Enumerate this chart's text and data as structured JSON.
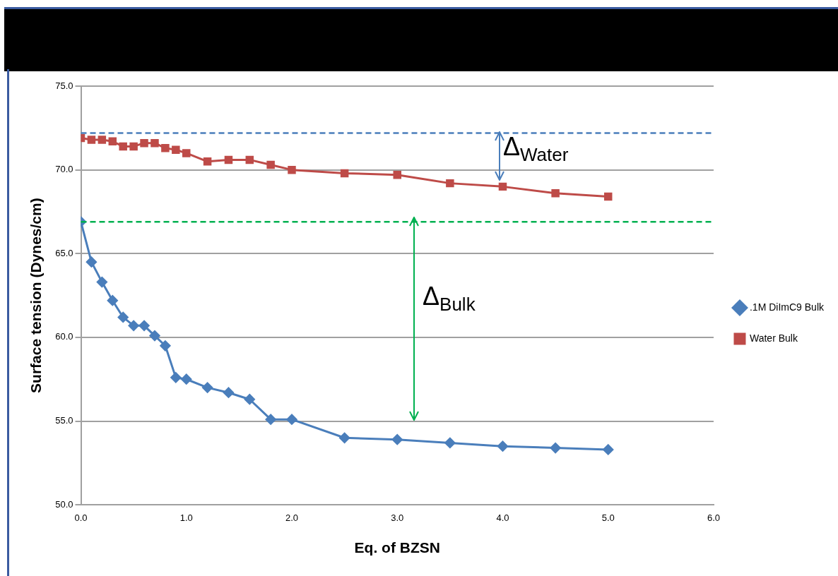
{
  "chart_data": {
    "type": "line",
    "xlabel": "Eq. of BZSN",
    "ylabel": "Surface tension (Dynes/cm)",
    "xlim": [
      0,
      6
    ],
    "xticks": [
      {
        "value": 0,
        "label": "0.0"
      },
      {
        "value": 1,
        "label": "1.0"
      },
      {
        "value": 2,
        "label": "2.0"
      },
      {
        "value": 3,
        "label": "3.0"
      },
      {
        "value": 4,
        "label": "4.0"
      },
      {
        "value": 5,
        "label": "5.0"
      },
      {
        "value": 6,
        "label": "6.0"
      }
    ],
    "ylim": [
      50,
      75
    ],
    "yticks": [
      {
        "value": 50,
        "label": "50.0"
      },
      {
        "value": 55,
        "label": "55.0"
      },
      {
        "value": 60,
        "label": "60.0"
      },
      {
        "value": 65,
        "label": "65.0"
      },
      {
        "value": 70,
        "label": "70.0"
      },
      {
        "value": 75,
        "label": "75.0"
      }
    ],
    "grid": "y",
    "legend": "right",
    "line_style": "solid",
    "x": [
      0,
      0.1,
      0.2,
      0.3,
      0.4,
      0.5,
      0.6,
      0.7,
      0.8,
      0.9,
      1.0,
      1.2,
      1.4,
      1.6,
      1.8,
      2.0,
      2.5,
      3.0,
      3.5,
      4.0,
      4.5,
      5.0
    ],
    "series": [
      {
        "name": ".1M DiImC9 Bulk",
        "color": "#4a7ebb",
        "marker": "diamond",
        "values": [
          66.9,
          64.5,
          63.3,
          62.2,
          61.2,
          60.7,
          60.7,
          60.1,
          59.5,
          57.6,
          57.5,
          57.0,
          56.7,
          56.3,
          55.1,
          55.1,
          54.0,
          53.9,
          53.7,
          53.5,
          53.4,
          53.3
        ]
      },
      {
        "name": "Water Bulk",
        "color": "#be4b48",
        "marker": "square",
        "values": [
          71.9,
          71.8,
          71.8,
          71.7,
          71.4,
          71.4,
          71.6,
          71.6,
          71.3,
          71.2,
          71.0,
          70.5,
          70.6,
          70.6,
          70.3,
          70.0,
          69.8,
          69.7,
          69.2,
          69.0,
          68.6,
          68.4
        ]
      }
    ],
    "ref_lines": [
      {
        "axis": "y",
        "value": 72.2,
        "color": "#4a7ebb",
        "line_style": "dashed"
      },
      {
        "axis": "y",
        "value": 66.9,
        "color": "#00b050",
        "line_style": "dashed"
      }
    ],
    "annotations": [
      "Δ$_{Water}$",
      "Δ$_{Bulk}$"
    ]
  }
}
